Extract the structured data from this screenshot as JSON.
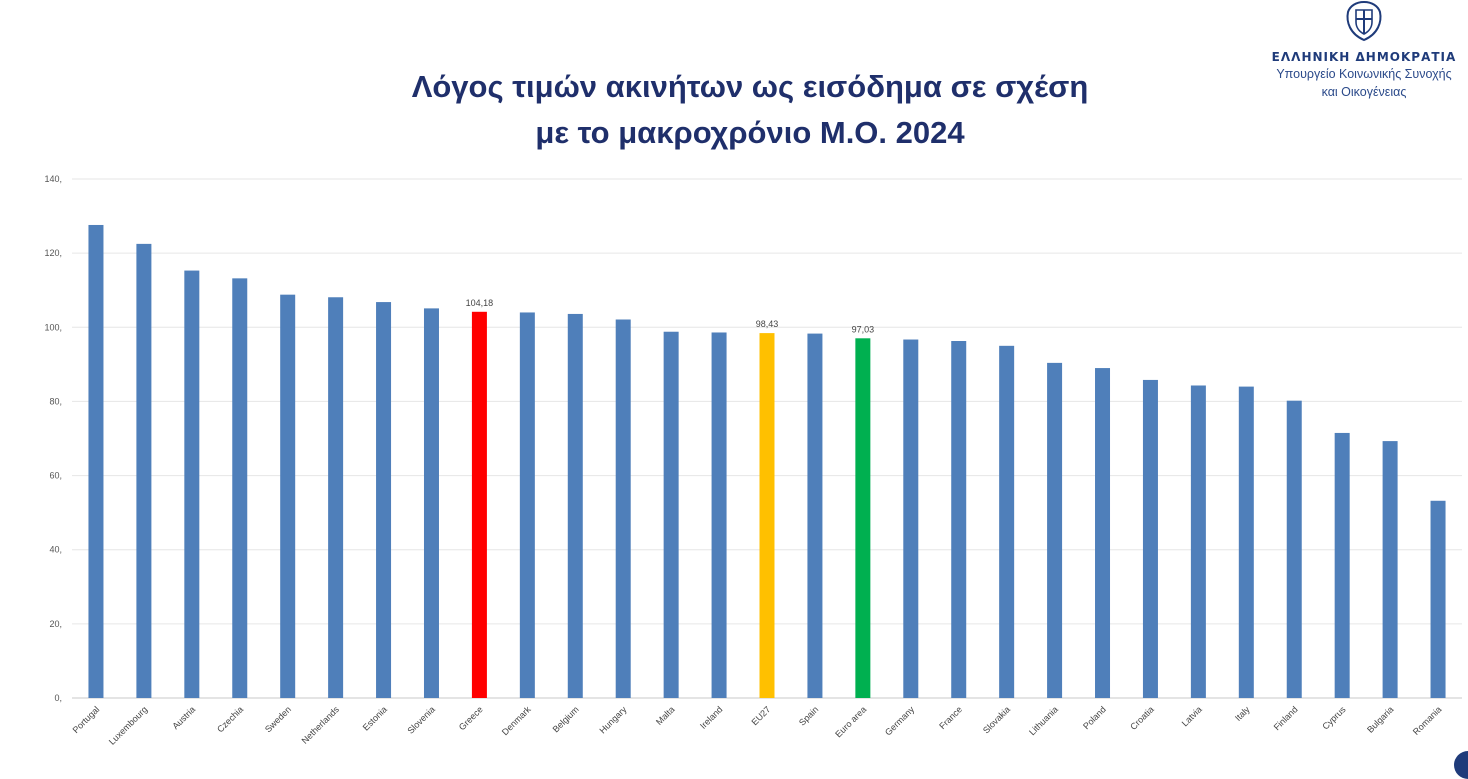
{
  "header": {
    "title_line1": "Λόγος τιμών ακινήτων ως εισόδημα σε σχέση",
    "title_line2": "με το μακροχρόνιο Μ.Ο. 2024",
    "org_name": "ΕΛΛΗΝΙΚΗ ΔΗΜΟΚΡΑΤΙΑ",
    "org_sub1": "Υπουργείο Κοινωνικής Συνοχής",
    "org_sub2": "και Οικογένειας",
    "emblem_icon": "greek-coat-of-arms-icon"
  },
  "colors": {
    "default_bar": "#4f7fba",
    "greece": "#ff0000",
    "eu27": "#ffc000",
    "euro_area": "#00b050",
    "title": "#1f2f6b"
  },
  "chart_data": {
    "type": "bar",
    "title": "Λόγος τιμών ακινήτων ως εισόδημα σε σχέση με το μακροχρόνιο Μ.Ο. 2024",
    "xlabel": "",
    "ylabel": "",
    "ylim": [
      0,
      140
    ],
    "yticks": [
      0,
      20,
      40,
      60,
      80,
      100,
      120,
      140
    ],
    "ytick_labels": [
      "0,",
      "20,",
      "40,",
      "60,",
      "80,",
      "100,",
      "120,",
      "140,"
    ],
    "grid": true,
    "categories": [
      "Portugal",
      "Luxembourg",
      "Austria",
      "Czechia",
      "Sweden",
      "Netherlands",
      "Estonia",
      "Slovenia",
      "Greece",
      "Denmark",
      "Belgium",
      "Hungary",
      "Malta",
      "Ireland",
      "EU27",
      "Spain",
      "Euro area",
      "Germany",
      "France",
      "Slovakia",
      "Lithuania",
      "Poland",
      "Croatia",
      "Latvia",
      "Italy",
      "Finland",
      "Cyprus",
      "Bulgaria",
      "Romania"
    ],
    "values": [
      127.6,
      122.5,
      115.3,
      113.2,
      108.8,
      108.1,
      106.8,
      105.1,
      104.18,
      104.0,
      103.6,
      102.1,
      98.8,
      98.6,
      98.43,
      98.3,
      97.03,
      96.7,
      96.3,
      95.0,
      90.4,
      89.0,
      85.8,
      84.3,
      84.0,
      80.2,
      71.5,
      69.3,
      53.2
    ],
    "highlights": {
      "Greece": {
        "color": "#ff0000",
        "label": "104,18"
      },
      "EU27": {
        "color": "#ffc000",
        "label": "98,43"
      },
      "Euro area": {
        "color": "#00b050",
        "label": "97,03"
      }
    }
  }
}
